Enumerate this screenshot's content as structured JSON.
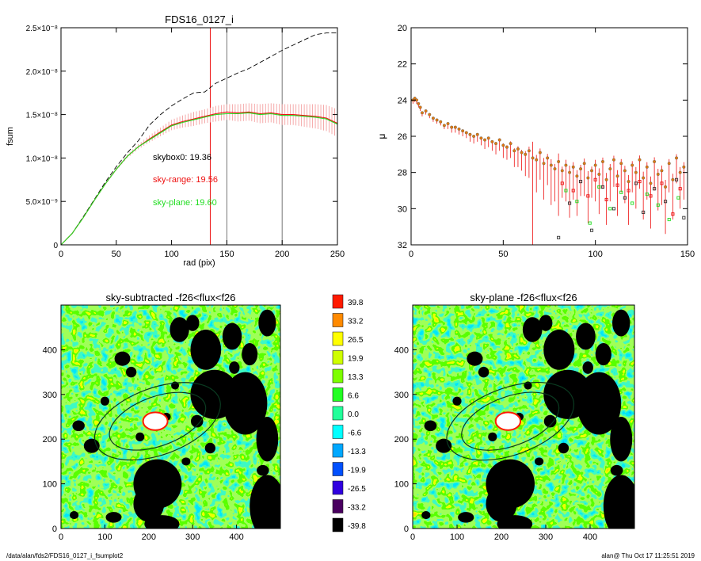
{
  "footer": {
    "path": "/data/alan/fds2/FDS16_0127_i_fsumplot2",
    "stamp": "alan@  Thu Oct 17 11:25:51 2019"
  },
  "colors": {
    "total": "#000000",
    "sky_range": "#ee1111",
    "sky_plane": "#22dd22",
    "mu_point": "#e07a10"
  },
  "chart_data": [
    {
      "id": "fsum",
      "type": "line",
      "title": "FDS16_0127_i",
      "xlabel": "rad (pix)",
      "ylabel": "fsum",
      "xlim": [
        0,
        250
      ],
      "ylim": [
        0,
        2.5e-08
      ],
      "xticks": [
        "0",
        "50",
        "100",
        "150",
        "200",
        "250"
      ],
      "yticks": [
        "0",
        "5.0×10⁻⁹",
        "1.0×10⁻⁸",
        "1.5×10⁻⁸",
        "2.0×10⁻⁸",
        "2.5×10⁻⁸"
      ],
      "annotations": [
        {
          "text": "skybox0: 19.36",
          "color": "#000000"
        },
        {
          "text": "sky-range: 19.56",
          "color": "#ee1111"
        },
        {
          "text": "sky-plane: 19.60",
          "color": "#22dd22"
        }
      ],
      "vlines": [
        {
          "x": 135,
          "color": "#ee1111"
        },
        {
          "x": 150,
          "color": "#777777"
        },
        {
          "x": 200,
          "color": "#777777"
        }
      ],
      "series": [
        {
          "style": "dashed",
          "color": "#000000",
          "x": [
            0,
            10,
            20,
            30,
            40,
            50,
            60,
            70,
            80,
            90,
            100,
            110,
            120,
            130,
            140,
            150,
            160,
            170,
            180,
            190,
            200,
            210,
            220,
            230,
            240,
            250
          ],
          "y": [
            0,
            1.3e-09,
            3.2e-09,
            5.2e-09,
            7.2e-09,
            9e-09,
            1.06e-08,
            1.2e-08,
            1.38e-08,
            1.5e-08,
            1.6e-08,
            1.68e-08,
            1.75e-08,
            1.76e-08,
            1.86e-08,
            1.92e-08,
            1.98e-08,
            2.03e-08,
            2.1e-08,
            2.17e-08,
            2.24e-08,
            2.3e-08,
            2.36e-08,
            2.42e-08,
            2.44e-08,
            2.44e-08
          ]
        },
        {
          "style": "solid-with-errors",
          "color": "#ee1111",
          "x": [
            0,
            10,
            20,
            30,
            40,
            50,
            60,
            70,
            80,
            90,
            100,
            110,
            120,
            130,
            140,
            150,
            160,
            170,
            180,
            190,
            200,
            210,
            220,
            230,
            240,
            250
          ],
          "y": [
            0,
            1.3e-09,
            3.1e-09,
            5.1e-09,
            7e-09,
            8.7e-09,
            1.02e-08,
            1.13e-08,
            1.22e-08,
            1.3e-08,
            1.38e-08,
            1.42e-08,
            1.45e-08,
            1.48e-08,
            1.51e-08,
            1.53e-08,
            1.52e-08,
            1.53e-08,
            1.51e-08,
            1.52e-08,
            1.5e-08,
            1.5e-08,
            1.49e-08,
            1.48e-08,
            1.46e-08,
            1.4e-08
          ],
          "err": [
            0,
            1e-11,
            3e-11,
            6e-11,
            1e-10,
            1.5e-10,
            2e-10,
            3e-10,
            4e-10,
            5e-10,
            6e-10,
            7e-10,
            8e-10,
            8e-10,
            9e-10,
            9e-10,
            1e-09,
            1e-09,
            1.1e-09,
            1.1e-09,
            1.2e-09,
            1.2e-09,
            1.3e-09,
            1.4e-09,
            1.5e-09,
            1.6e-09
          ]
        },
        {
          "style": "solid",
          "color": "#22dd22",
          "x": [
            0,
            10,
            20,
            30,
            40,
            50,
            60,
            70,
            80,
            90,
            100,
            110,
            120,
            130,
            140,
            150,
            160,
            170,
            180,
            190,
            200,
            210,
            220,
            230,
            240,
            250
          ],
          "y": [
            0,
            1.3e-09,
            3.1e-09,
            5.1e-09,
            7e-09,
            8.7e-09,
            1.02e-08,
            1.13e-08,
            1.21e-08,
            1.29e-08,
            1.37e-08,
            1.41e-08,
            1.44e-08,
            1.47e-08,
            1.5e-08,
            1.51e-08,
            1.51e-08,
            1.52e-08,
            1.5e-08,
            1.51e-08,
            1.49e-08,
            1.49e-08,
            1.48e-08,
            1.47e-08,
            1.45e-08,
            1.39e-08
          ]
        }
      ]
    },
    {
      "id": "mu",
      "type": "scatter",
      "title": "",
      "xlabel": "",
      "ylabel": "μ",
      "xlim": [
        0,
        150
      ],
      "ylim": [
        32,
        20
      ],
      "xticks": [
        "0",
        "50",
        "100",
        "150"
      ],
      "yticks": [
        "20",
        "22",
        "24",
        "26",
        "28",
        "30",
        "32"
      ],
      "series": [
        {
          "color": "#e07a10",
          "x": [
            1,
            2,
            3,
            4,
            5,
            6,
            8,
            10,
            12,
            14,
            16,
            18,
            20,
            22,
            24,
            26,
            28,
            30,
            32,
            34,
            36,
            38,
            40,
            42,
            44,
            46,
            48,
            50,
            52,
            54,
            56,
            58,
            60,
            62,
            64,
            66,
            68,
            70,
            72,
            74,
            76,
            78,
            80,
            82,
            84,
            86,
            88,
            90,
            92,
            94,
            96,
            98,
            100,
            102,
            104,
            106,
            108,
            110,
            112,
            114,
            116,
            118,
            120,
            122,
            124,
            126,
            128,
            130,
            132,
            134,
            136,
            138,
            140,
            142,
            144,
            146,
            148
          ],
          "y": [
            24.0,
            23.9,
            24.0,
            24.2,
            24.4,
            24.7,
            24.6,
            24.8,
            25.0,
            25.1,
            25.2,
            25.4,
            25.3,
            25.5,
            25.5,
            25.6,
            25.7,
            25.8,
            25.9,
            26.0,
            25.9,
            26.1,
            26.2,
            26.1,
            26.3,
            26.4,
            26.2,
            26.5,
            26.6,
            26.4,
            26.8,
            26.7,
            26.9,
            27.0,
            26.8,
            27.2,
            27.3,
            26.9,
            27.5,
            27.2,
            27.6,
            27.8,
            27.4,
            27.9,
            27.6,
            28.0,
            27.7,
            28.2,
            27.8,
            27.5,
            28.3,
            27.9,
            27.6,
            28.1,
            27.4,
            28.4,
            27.8,
            27.3,
            28.2,
            27.5,
            27.9,
            28.5,
            27.6,
            28.0,
            27.3,
            28.3,
            27.7,
            28.6,
            27.4,
            28.1,
            27.9,
            28.8,
            27.5,
            28.4,
            27.2,
            28.0,
            27.7
          ],
          "err": [
            0.2,
            0.2,
            0.2,
            0.2,
            0.2,
            0.2,
            0.2,
            0.2,
            0.2,
            0.2,
            0.2,
            0.2,
            0.3,
            0.3,
            0.3,
            0.3,
            0.3,
            0.3,
            0.4,
            0.4,
            0.4,
            0.4,
            0.5,
            0.5,
            0.5,
            0.6,
            0.6,
            0.7,
            0.7,
            0.8,
            0.9,
            1.0,
            1.0,
            1.2,
            1.5,
            6.0,
            1.8,
            1.5,
            2.0,
            1.5,
            2.2,
            1.8,
            3.0,
            1.5,
            2.0,
            2.5,
            1.8,
            2.2,
            1.5,
            1.8,
            2.5,
            1.5,
            2.0,
            2.2,
            1.5,
            2.5,
            1.8,
            1.5,
            2.2,
            1.6,
            1.8,
            2.4,
            1.5,
            2.0,
            1.6,
            2.3,
            1.8,
            2.5,
            1.6,
            2.0,
            1.9,
            2.6,
            1.6,
            2.2,
            1.4,
            2.0,
            1.8
          ]
        },
        {
          "color": "#ee1111",
          "marker": "square",
          "x": [
            82,
            88,
            96,
            100,
            106,
            112,
            118,
            124,
            130,
            136,
            142,
            146
          ],
          "y": [
            28.6,
            29.0,
            29.3,
            28.4,
            29.5,
            28.7,
            29.0,
            28.5,
            29.3,
            28.6,
            30.3,
            28.9
          ]
        },
        {
          "color": "#22dd22",
          "marker": "square",
          "x": [
            84,
            90,
            97,
            102,
            108,
            114,
            120,
            128,
            134,
            140,
            145
          ],
          "y": [
            29.0,
            29.6,
            30.8,
            28.8,
            30.0,
            29.1,
            29.7,
            29.2,
            29.8,
            30.6,
            29.4
          ]
        },
        {
          "color": "#333333",
          "marker": "square",
          "x": [
            80,
            86,
            92,
            98,
            104,
            110,
            116,
            122,
            126,
            132,
            138,
            144,
            148
          ],
          "y": [
            31.6,
            29.7,
            28.5,
            31.2,
            28.8,
            30.0,
            29.4,
            28.6,
            30.2,
            28.9,
            29.6,
            28.4,
            30.5
          ]
        }
      ]
    },
    {
      "id": "img-left",
      "type": "heatmap",
      "title": "sky-subtracted -f26<flux<f26",
      "xlim": [
        0,
        500
      ],
      "ylim": [
        0,
        500
      ],
      "xticks": [
        "0",
        "100",
        "200",
        "300",
        "400"
      ],
      "yticks": [
        "0",
        "100",
        "200",
        "300",
        "400"
      ]
    },
    {
      "id": "img-right",
      "type": "heatmap",
      "title": "sky-plane -f26<flux<f26",
      "xlim": [
        0,
        500
      ],
      "ylim": [
        0,
        500
      ],
      "xticks": [
        "0",
        "100",
        "200",
        "300",
        "400"
      ],
      "yticks": [
        "0",
        "100",
        "200",
        "300",
        "400"
      ]
    },
    {
      "id": "colorbar",
      "type": "heatmap",
      "levels": [
        "39.8",
        "33.2",
        "26.5",
        "19.9",
        "13.3",
        "6.6",
        "0.0",
        "-6.6",
        "-13.3",
        "-19.9",
        "-26.5",
        "-33.2",
        "-39.8"
      ],
      "colors": [
        "#ff1a00",
        "#ff8a00",
        "#ffff00",
        "#cfff00",
        "#7dff00",
        "#22ff22",
        "#22ff9a",
        "#00ffff",
        "#00a8ff",
        "#0050ff",
        "#3000e0",
        "#4a0060",
        "#000000"
      ]
    }
  ]
}
